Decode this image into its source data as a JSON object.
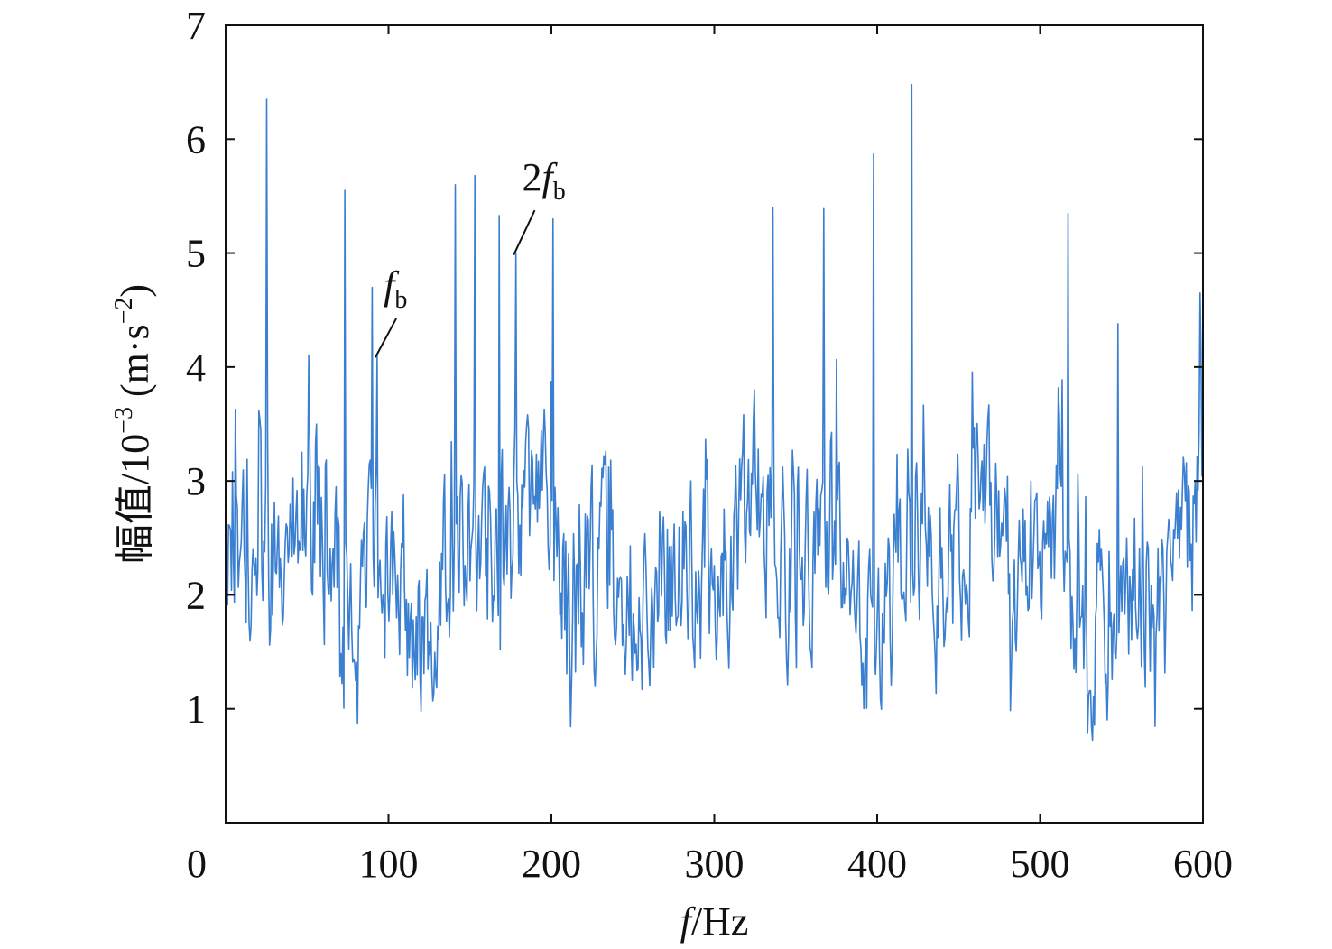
{
  "chart_data": {
    "type": "line",
    "title": "",
    "xlabel": {
      "italic": "f",
      "rest": "/Hz"
    },
    "ylabel": {
      "pre": "幅值/10",
      "exp": "−3",
      "mid": " (m·s",
      "exp2": "−2",
      "post": ")"
    },
    "xlim": [
      0,
      600
    ],
    "ylim": [
      0,
      7
    ],
    "xticks": [
      0,
      100,
      200,
      300,
      400,
      500,
      600
    ],
    "yticks": [
      1,
      2,
      3,
      4,
      5,
      6,
      7
    ],
    "grid": false,
    "colors": {
      "line": "#3a7fd0",
      "axes": "#111111"
    },
    "spectrum": {
      "start_hz": 0,
      "step_hz": 0.6,
      "noise_level": 2.2,
      "noise_amplitude": 1.2,
      "seed": 17
    },
    "peaks": [
      {
        "x": 25,
        "y": 6.35
      },
      {
        "x": 73,
        "y": 5.55
      },
      {
        "x": 90,
        "y": 4.7
      },
      {
        "x": 93,
        "y": 4.1
      },
      {
        "x": 141,
        "y": 5.6
      },
      {
        "x": 153,
        "y": 5.68
      },
      {
        "x": 168,
        "y": 5.33
      },
      {
        "x": 178,
        "y": 5.0
      },
      {
        "x": 201,
        "y": 5.3
      },
      {
        "x": 336,
        "y": 5.4
      },
      {
        "x": 367,
        "y": 5.39
      },
      {
        "x": 398,
        "y": 5.87
      },
      {
        "x": 421,
        "y": 6.48
      },
      {
        "x": 517,
        "y": 5.35
      },
      {
        "x": 548,
        "y": 4.38
      },
      {
        "x": 598,
        "y": 4.65
      }
    ],
    "annotations": [
      {
        "label_italic": "f",
        "label_sub": "b",
        "prefix": "",
        "x": 93,
        "y": 4.1,
        "label_x": 97,
        "label_y": 4.6
      },
      {
        "label_italic": "f",
        "label_sub": "b",
        "prefix": "2",
        "x": 178,
        "y": 5.0,
        "label_x": 182,
        "label_y": 5.55
      }
    ]
  }
}
